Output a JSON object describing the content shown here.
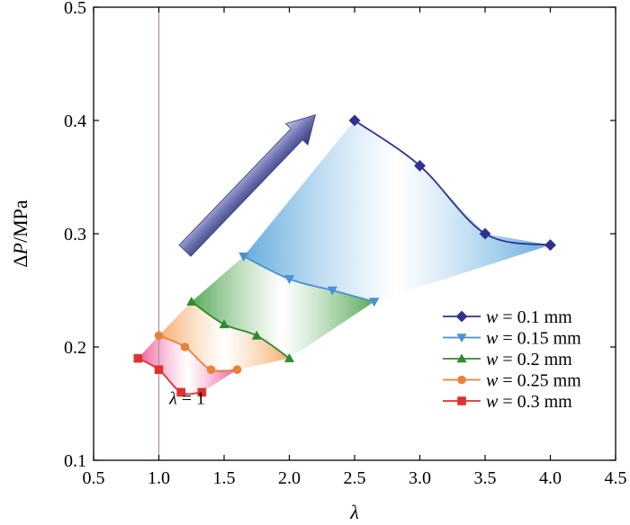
{
  "chart_data": {
    "type": "line",
    "xlabel": "λ",
    "ylabel_prefix": "Δ",
    "ylabel_var": "P",
    "ylabel_unit": "/MPa",
    "xlim": [
      0.5,
      4.5
    ],
    "ylim": [
      0.1,
      0.5
    ],
    "x_ticks": [
      0.5,
      1.0,
      1.5,
      2.0,
      2.5,
      3.0,
      3.5,
      4.0,
      4.5
    ],
    "x_tick_labels": [
      "0.5",
      "1.0",
      "1.5",
      "2.0",
      "2.5",
      "3.0",
      "3.5",
      "4.0",
      "4.5"
    ],
    "y_ticks": [
      0.1,
      0.2,
      0.3,
      0.4,
      0.5
    ],
    "y_tick_labels": [
      "0.1",
      "0.2",
      "0.3",
      "0.4",
      "0.5"
    ],
    "grid": false,
    "legend_position": "bottom-right",
    "reference_line_x": 1.0,
    "annotation": {
      "var": "λ",
      "rest": " = 1",
      "x": 1.08,
      "y": 0.155
    },
    "arrow": {
      "from": [
        1.2,
        0.285
      ],
      "to": [
        2.2,
        0.405
      ]
    },
    "series": [
      {
        "var": "w",
        "label": " = 0.1 mm",
        "color": "#2e3192",
        "marker": "diamond",
        "x": [
          2.5,
          3.0,
          3.5,
          4.0
        ],
        "y": [
          0.4,
          0.36,
          0.3,
          0.29
        ]
      },
      {
        "var": "w",
        "label": " = 0.15 mm",
        "color": "#4a90d0",
        "marker": "triangle-down",
        "x": [
          1.65,
          2.0,
          2.33,
          2.65
        ],
        "y": [
          0.28,
          0.26,
          0.25,
          0.24
        ]
      },
      {
        "var": "w",
        "label": " = 0.2 mm",
        "color": "#2e8b2e",
        "marker": "triangle-up",
        "x": [
          1.25,
          1.5,
          1.75,
          2.0
        ],
        "y": [
          0.24,
          0.22,
          0.21,
          0.19
        ]
      },
      {
        "var": "w",
        "label": " = 0.25 mm",
        "color": "#e8823a",
        "marker": "circle",
        "x": [
          1.0,
          1.2,
          1.4,
          1.6
        ],
        "y": [
          0.21,
          0.2,
          0.18,
          0.18
        ]
      },
      {
        "var": "w",
        "label": " = 0.3 mm",
        "color": "#e0312d",
        "marker": "square",
        "x": [
          0.84,
          1.0,
          1.17,
          1.33
        ],
        "y": [
          0.19,
          0.18,
          0.16,
          0.16
        ]
      }
    ],
    "bands": [
      {
        "from_series": 1,
        "to_series": 0,
        "color": "#4a9ed8"
      },
      {
        "from_series": 2,
        "to_series": 1,
        "color": "#3a9a3a"
      },
      {
        "from_series": 3,
        "to_series": 2,
        "color": "#f0a050"
      },
      {
        "from_series": 4,
        "to_series": 3,
        "color": "#e8408a"
      }
    ]
  }
}
